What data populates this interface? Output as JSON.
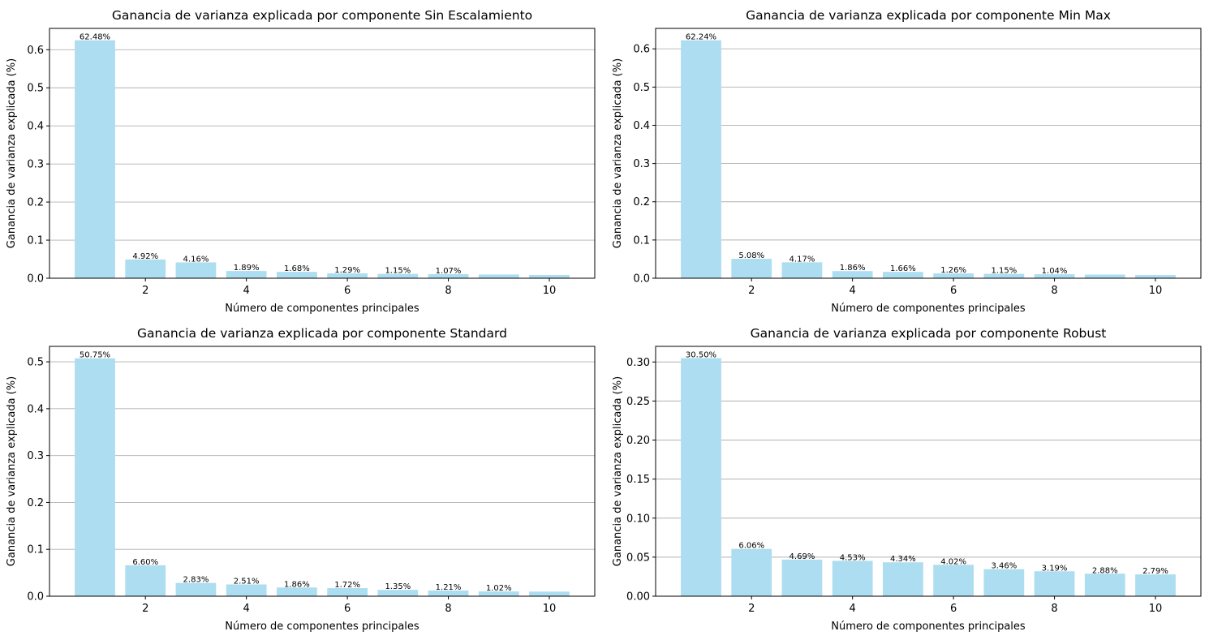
{
  "figure": {
    "bar_color": "#ADDDF0",
    "grid_color": "#b0b0b0",
    "axis_color": "#000000"
  },
  "chart_data": [
    {
      "type": "bar",
      "title": "Ganancia de varianza explicada por componente Sin Escalamiento",
      "xlabel": "Número de componentes principales",
      "ylabel": "Ganancia de varianza explicada (%)",
      "x": [
        1,
        2,
        3,
        4,
        5,
        6,
        7,
        8,
        9,
        10
      ],
      "values": [
        0.6248,
        0.0492,
        0.0416,
        0.0189,
        0.0168,
        0.0129,
        0.0115,
        0.0107,
        0.0098,
        0.0085
      ],
      "labels": [
        "62.48%",
        "4.92%",
        "4.16%",
        "1.89%",
        "1.68%",
        "1.29%",
        "1.15%",
        "1.07%",
        "",
        ""
      ],
      "xticks": [
        2,
        4,
        6,
        8,
        10
      ],
      "yticks": [
        0.0,
        0.1,
        0.2,
        0.3,
        0.4,
        0.5,
        0.6
      ],
      "ytick_labels": [
        "0.0",
        "0.1",
        "0.2",
        "0.3",
        "0.4",
        "0.5",
        "0.6"
      ],
      "xlim": [
        0.1,
        10.9
      ],
      "ylim": [
        0,
        0.656
      ],
      "grid": "y"
    },
    {
      "type": "bar",
      "title": "Ganancia de varianza explicada por componente Min Max",
      "xlabel": "Número de componentes principales",
      "ylabel": "Ganancia de varianza explicada (%)",
      "x": [
        1,
        2,
        3,
        4,
        5,
        6,
        7,
        8,
        9,
        10
      ],
      "values": [
        0.6224,
        0.0508,
        0.0417,
        0.0186,
        0.0166,
        0.0126,
        0.0115,
        0.0104,
        0.0096,
        0.0083
      ],
      "labels": [
        "62.24%",
        "5.08%",
        "4.17%",
        "1.86%",
        "1.66%",
        "1.26%",
        "1.15%",
        "1.04%",
        "",
        ""
      ],
      "xticks": [
        2,
        4,
        6,
        8,
        10
      ],
      "yticks": [
        0.0,
        0.1,
        0.2,
        0.3,
        0.4,
        0.5,
        0.6
      ],
      "ytick_labels": [
        "0.0",
        "0.1",
        "0.2",
        "0.3",
        "0.4",
        "0.5",
        "0.6"
      ],
      "xlim": [
        0.1,
        10.9
      ],
      "ylim": [
        0,
        0.6535
      ],
      "grid": "y"
    },
    {
      "type": "bar",
      "title": "Ganancia de varianza explicada por componente Standard",
      "xlabel": "Número de componentes principales",
      "ylabel": "Ganancia de varianza explicada (%)",
      "x": [
        1,
        2,
        3,
        4,
        5,
        6,
        7,
        8,
        9,
        10
      ],
      "values": [
        0.5075,
        0.066,
        0.0283,
        0.0251,
        0.0186,
        0.0172,
        0.0135,
        0.0121,
        0.0102,
        0.0098
      ],
      "labels": [
        "50.75%",
        "6.60%",
        "2.83%",
        "2.51%",
        "1.86%",
        "1.72%",
        "1.35%",
        "1.21%",
        "1.02%",
        ""
      ],
      "xticks": [
        2,
        4,
        6,
        8,
        10
      ],
      "yticks": [
        0.0,
        0.1,
        0.2,
        0.3,
        0.4,
        0.5
      ],
      "ytick_labels": [
        "0.0",
        "0.1",
        "0.2",
        "0.3",
        "0.4",
        "0.5"
      ],
      "xlim": [
        0.1,
        10.9
      ],
      "ylim": [
        0,
        0.533
      ],
      "grid": "y"
    },
    {
      "type": "bar",
      "title": "Ganancia de varianza explicada por componente Robust",
      "xlabel": "Número de componentes principales",
      "ylabel": "Ganancia de varianza explicada (%)",
      "x": [
        1,
        2,
        3,
        4,
        5,
        6,
        7,
        8,
        9,
        10
      ],
      "values": [
        0.305,
        0.0606,
        0.0469,
        0.0453,
        0.0434,
        0.0402,
        0.0346,
        0.0319,
        0.0288,
        0.0279
      ],
      "labels": [
        "30.50%",
        "6.06%",
        "4.69%",
        "4.53%",
        "4.34%",
        "4.02%",
        "3.46%",
        "3.19%",
        "2.88%",
        "2.79%"
      ],
      "xticks": [
        2,
        4,
        6,
        8,
        10
      ],
      "yticks": [
        0.0,
        0.05,
        0.1,
        0.15,
        0.2,
        0.25,
        0.3
      ],
      "ytick_labels": [
        "0.00",
        "0.05",
        "0.10",
        "0.15",
        "0.20",
        "0.25",
        "0.30"
      ],
      "xlim": [
        0.1,
        10.9
      ],
      "ylim": [
        0,
        0.32
      ],
      "grid": "y"
    }
  ]
}
